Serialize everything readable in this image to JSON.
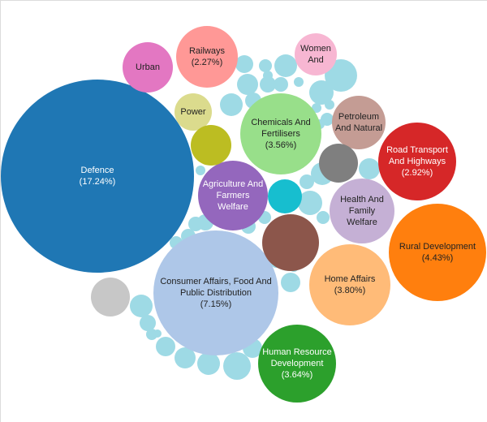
{
  "chart_data": {
    "type": "bubble",
    "unit": "%",
    "bubbles": [
      {
        "id": "defence",
        "lines": [
          "Defence"
        ],
        "value": 17.24,
        "value_text": "(17.24%)",
        "color": "#1f77b4",
        "text": "light"
      },
      {
        "id": "consumer",
        "lines": [
          "Consumer Affairs, Food And",
          "Public Distribution"
        ],
        "value": 7.15,
        "value_text": "(7.15%)",
        "color": "#aec7e8",
        "text": "dark"
      },
      {
        "id": "rural",
        "lines": [
          "Rural Development"
        ],
        "value": 4.43,
        "value_text": "(4.43%)",
        "color": "#ff7f0e",
        "text": "dark"
      },
      {
        "id": "home",
        "lines": [
          "Home Affairs"
        ],
        "value": 3.8,
        "value_text": "(3.80%)",
        "color": "#ffbb78",
        "text": "dark"
      },
      {
        "id": "hrd",
        "lines": [
          "Human Resource",
          "Development"
        ],
        "value": 3.64,
        "value_text": "(3.64%)",
        "color": "#2ca02c",
        "text": "light"
      },
      {
        "id": "chem",
        "lines": [
          "Chemicals And",
          "Fertilisers"
        ],
        "value": 3.56,
        "value_text": "(3.56%)",
        "color": "#98df8a",
        "text": "dark"
      },
      {
        "id": "road",
        "lines": [
          "Road Transport",
          "And Highways"
        ],
        "value": 2.92,
        "value_text": "(2.92%)",
        "color": "#d62728",
        "text": "light"
      },
      {
        "id": "railways",
        "lines": [
          "Railways"
        ],
        "value": 2.27,
        "value_text": "(2.27%)",
        "color": "#ff9896",
        "text": "dark"
      },
      {
        "id": "agri",
        "lines": [
          "Agriculture And",
          "Farmers",
          "Welfare"
        ],
        "value": null,
        "value_text": "",
        "color": "#9467bd",
        "text": "light"
      },
      {
        "id": "health",
        "lines": [
          "Health And",
          "Family",
          "Welfare"
        ],
        "value": null,
        "value_text": "",
        "color": "#c5b0d5",
        "text": "dark"
      },
      {
        "id": "petroleum",
        "lines": [
          "Petroleum",
          "And Natural"
        ],
        "value": null,
        "value_text": "",
        "color": "#c49c94",
        "text": "dark"
      },
      {
        "id": "brown",
        "lines": [],
        "value": null,
        "value_text": "",
        "color": "#8c564b",
        "text": "light"
      },
      {
        "id": "urban",
        "lines": [
          "Urban"
        ],
        "value": null,
        "value_text": "",
        "color": "#e377c2",
        "text": "dark"
      },
      {
        "id": "women",
        "lines": [
          "Women",
          "And"
        ],
        "value": null,
        "value_text": "",
        "color": "#f7b6d2",
        "text": "dark"
      },
      {
        "id": "power",
        "lines": [
          "Power"
        ],
        "value": null,
        "value_text": "",
        "color": "#dbdb8d",
        "text": "dark"
      },
      {
        "id": "olive",
        "lines": [],
        "value": null,
        "value_text": "",
        "color": "#bcbd22",
        "text": "dark"
      },
      {
        "id": "cyan",
        "lines": [],
        "value": null,
        "value_text": "",
        "color": "#17becf",
        "text": "dark"
      },
      {
        "id": "grey-dark",
        "lines": [],
        "value": null,
        "value_text": "",
        "color": "#7f7f7f",
        "text": "light"
      },
      {
        "id": "grey-light",
        "lines": [],
        "value": null,
        "value_text": "",
        "color": "#c7c7c7",
        "text": "dark"
      }
    ],
    "small_bubble_color": "#9edae5",
    "small_bubble_count": 42
  }
}
